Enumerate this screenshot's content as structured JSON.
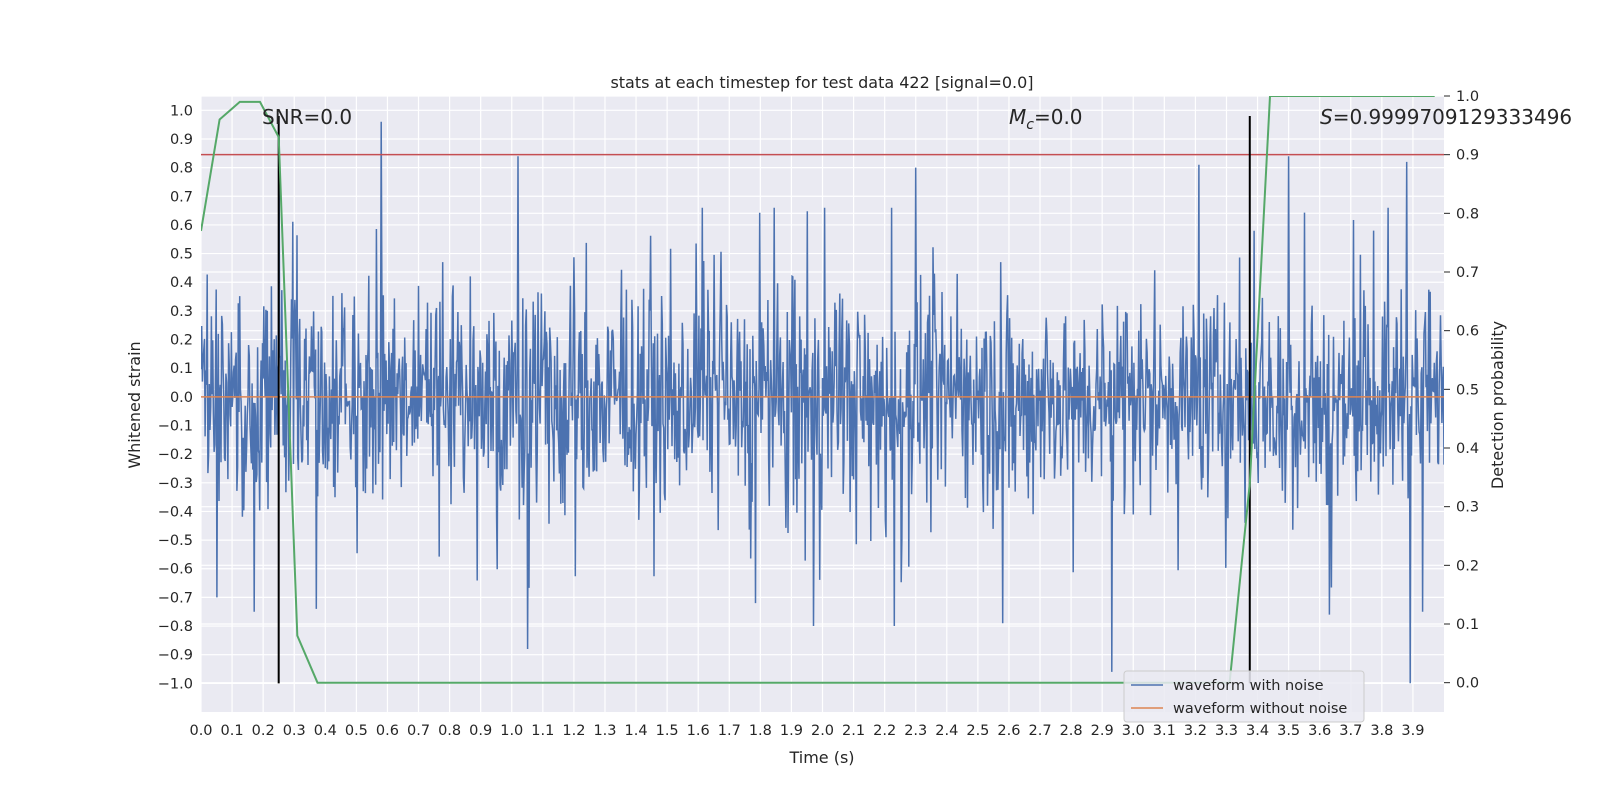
{
  "chart_data": {
    "type": "line",
    "title": "stats at each timestep for test data 422 [signal=0.0]",
    "xlabel": "Time (s)",
    "ylabel": "Whitened strain",
    "y2label": "Detection probability",
    "xlim": [
      0.0,
      4.0
    ],
    "ylim": [
      -1.1,
      1.05
    ],
    "y2lim": [
      -0.05,
      1.0
    ],
    "x_ticks": [
      "0.0",
      "0.1",
      "0.2",
      "0.3",
      "0.4",
      "0.5",
      "0.6",
      "0.7",
      "0.8",
      "0.9",
      "1.0",
      "1.1",
      "1.2",
      "1.3",
      "1.4",
      "1.5",
      "1.6",
      "1.7",
      "1.8",
      "1.9",
      "2.0",
      "2.1",
      "2.2",
      "2.3",
      "2.4",
      "2.5",
      "2.6",
      "2.7",
      "2.8",
      "2.9",
      "3.0",
      "3.1",
      "3.2",
      "3.3",
      "3.4",
      "3.5",
      "3.6",
      "3.7",
      "3.8",
      "3.9"
    ],
    "y_ticks": [
      "1.0",
      "0.9",
      "0.8",
      "0.7",
      "0.6",
      "0.5",
      "0.4",
      "0.3",
      "0.2",
      "0.1",
      "0.0",
      "-0.1",
      "-0.2",
      "-0.3",
      "-0.4",
      "-0.5",
      "-0.6",
      "-0.7",
      "-0.8",
      "-0.9",
      "-1.0"
    ],
    "y2_ticks": [
      "1.0",
      "0.9",
      "0.8",
      "0.7",
      "0.6",
      "0.5",
      "0.4",
      "0.3",
      "0.2",
      "0.1",
      "0.0"
    ],
    "grid": true,
    "legend_position": "bottom-right",
    "annotations": {
      "snr": "SNR=0.0",
      "mc_symbol": "M",
      "mc_sub": "c",
      "mc_value": "=0.0",
      "s_symbol": "S",
      "s_value": "=0.9999709129333496"
    },
    "series": [
      {
        "name": "waveform with noise",
        "axis": "left",
        "color": "#4c72b0",
        "style": "noise",
        "peaks": [
          [
            0.25,
            0.91
          ],
          [
            0.58,
            0.96
          ],
          [
            1.02,
            0.84
          ],
          [
            2.3,
            0.8
          ],
          [
            3.21,
            0.81
          ],
          [
            3.5,
            0.84
          ],
          [
            3.88,
            0.82
          ],
          [
            0.05,
            -0.7
          ],
          [
            0.17,
            -0.75
          ],
          [
            0.37,
            -0.74
          ],
          [
            1.05,
            -0.88
          ],
          [
            2.23,
            -0.8
          ],
          [
            1.97,
            -0.8
          ],
          [
            2.58,
            -0.79
          ],
          [
            2.93,
            -0.96
          ],
          [
            3.63,
            -0.76
          ],
          [
            3.89,
            -1.0
          ],
          [
            3.93,
            -0.75
          ]
        ]
      },
      {
        "name": "waveform without noise",
        "axis": "left",
        "color": "#dd8452",
        "x": [
          0.0,
          4.0
        ],
        "y": [
          0.0,
          0.0
        ]
      },
      {
        "name": "detection probability",
        "axis": "right",
        "color": "#55a868",
        "x": [
          0.0,
          0.06,
          0.125,
          0.19,
          0.25,
          0.31,
          0.375,
          3.31,
          3.375,
          3.44,
          3.5,
          3.97
        ],
        "y": [
          0.77,
          0.96,
          0.99,
          0.99,
          0.93,
          0.08,
          0.0,
          0.0,
          0.34,
          1.0,
          1.0,
          1.0
        ]
      }
    ],
    "threshold": {
      "axis": "right",
      "value": 0.9,
      "color": "#c44e52"
    },
    "vlines": [
      {
        "x": 0.25,
        "y_from": -1.0,
        "y_to": 0.98,
        "color": "#000000"
      },
      {
        "x": 3.375,
        "y_from": -1.0,
        "y_to": 0.98,
        "color": "#000000"
      }
    ]
  }
}
